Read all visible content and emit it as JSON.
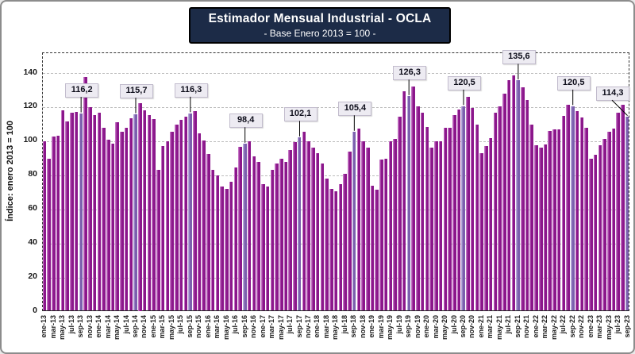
{
  "header": {
    "title": "Estimador Mensual Industrial - OCLA",
    "subtitle": "- Base Enero 2013 = 100 -"
  },
  "colors": {
    "bar": "#8b178b",
    "bar_edge": "#c473c4",
    "highlight_bar": "#7b5fae",
    "highlight_edge": "#b7a8da",
    "title_bg": "#1c2b47",
    "callout_bg": "#edebf2"
  },
  "chart_data": {
    "type": "bar",
    "title": "Estimador Mensual Industrial - OCLA",
    "subtitle": "- Base Enero 2013 = 100 -",
    "ylabel": "Índice: enero 2013 = 100",
    "ylim": [
      0,
      140
    ],
    "yticks": [
      0,
      20,
      40,
      60,
      80,
      100,
      120,
      140
    ],
    "grid": "dashed-horizontal",
    "x_start": "ene-13",
    "x_end": "sep-23",
    "x_tick_labels": [
      "ene-13",
      "mar-13",
      "may-13",
      "jul-13",
      "sep-13",
      "nov-13",
      "ene-14",
      "mar-14",
      "may-14",
      "jul-14",
      "sep-14",
      "nov-14",
      "ene-15",
      "mar-15",
      "may-15",
      "jul-15",
      "sep-15",
      "nov-15",
      "ene-16",
      "mar-16",
      "may-16",
      "jul-16",
      "sep-16",
      "nov-16",
      "ene-17",
      "mar-17",
      "may-17",
      "jul-17",
      "sep-17",
      "nov-17",
      "ene-18",
      "mar-18",
      "may-18",
      "jul-18",
      "sep-18",
      "nov-18",
      "ene-19",
      "mar-19",
      "may-19",
      "jul-19",
      "sep-19",
      "nov-19",
      "ene-20",
      "mar-20",
      "may-20",
      "jul-20",
      "sep-20",
      "nov-20",
      "ene-21",
      "mar-21",
      "may-21",
      "jul-21",
      "sep-21",
      "nov-21",
      "ene-22",
      "mar-22",
      "may-22",
      "jul-22",
      "sep-22",
      "nov-22",
      "ene-23",
      "mar-23",
      "may-23",
      "jul-23",
      "sep-23"
    ],
    "values": [
      100.0,
      89.5,
      102.5,
      103.0,
      118.0,
      111.5,
      116.5,
      117.0,
      116.2,
      137.5,
      120.0,
      115.5,
      116.5,
      108.0,
      101.0,
      98.5,
      111.0,
      105.5,
      108.0,
      113.5,
      115.7,
      122.5,
      118.0,
      115.5,
      113.0,
      83.0,
      97.0,
      100.0,
      105.5,
      109.5,
      112.5,
      114.5,
      116.3,
      117.5,
      104.5,
      100.5,
      92.5,
      83.0,
      80.0,
      73.5,
      72.0,
      76.0,
      84.5,
      96.5,
      98.4,
      100.0,
      91.0,
      88.0,
      75.0,
      73.5,
      83.0,
      87.0,
      89.5,
      88.0,
      95.0,
      99.5,
      102.1,
      105.5,
      100.0,
      96.0,
      93.0,
      87.0,
      78.0,
      72.0,
      70.5,
      75.0,
      81.0,
      94.0,
      105.4,
      107.5,
      100.0,
      96.0,
      74.0,
      71.5,
      89.0,
      89.5,
      100.0,
      101.5,
      114.5,
      129.5,
      126.3,
      132.0,
      120.5,
      116.5,
      108.5,
      96.0,
      100.0,
      100.0,
      108.0,
      108.0,
      115.5,
      118.5,
      120.5,
      126.0,
      119.5,
      109.5,
      93.0,
      97.0,
      102.0,
      116.5,
      120.5,
      128.0,
      136.0,
      138.5,
      135.6,
      131.5,
      124.0,
      109.5,
      97.5,
      96.0,
      98.0,
      106.0,
      107.0,
      107.0,
      115.0,
      121.5,
      120.5,
      117.5,
      114.0,
      108.0,
      89.5,
      92.0,
      97.5,
      101.5,
      105.5,
      107.5,
      116.5,
      121.5,
      114.3
    ],
    "highlight_indices": [
      8,
      20,
      32,
      44,
      56,
      68,
      80,
      92,
      104,
      116,
      128
    ],
    "callouts": [
      {
        "index": 8,
        "label": "116,2"
      },
      {
        "index": 20,
        "label": "115,7"
      },
      {
        "index": 32,
        "label": "116,3"
      },
      {
        "index": 44,
        "label": "98,4"
      },
      {
        "index": 56,
        "label": "102,1"
      },
      {
        "index": 68,
        "label": "105,4"
      },
      {
        "index": 80,
        "label": "126,3"
      },
      {
        "index": 92,
        "label": "120,5"
      },
      {
        "index": 104,
        "label": "135,6"
      },
      {
        "index": 116,
        "label": "120,5"
      },
      {
        "index": 128,
        "label": "114,3"
      }
    ]
  }
}
